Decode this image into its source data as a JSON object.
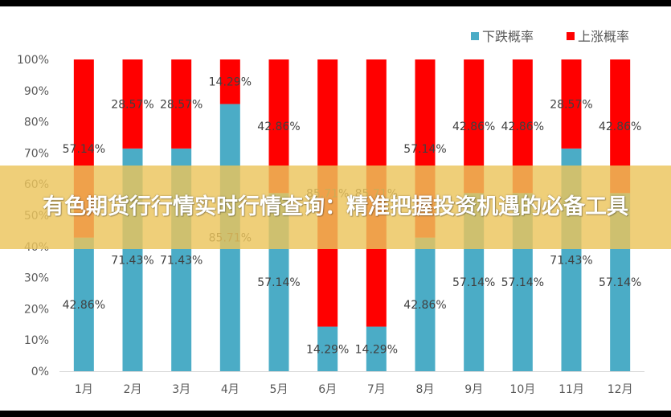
{
  "chart_data": {
    "type": "bar",
    "stacked": true,
    "categories": [
      "1月",
      "2月",
      "3月",
      "4月",
      "5月",
      "6月",
      "7月",
      "8月",
      "9月",
      "10月",
      "11月",
      "12月"
    ],
    "series": [
      {
        "name": "下跌概率",
        "color": "#4bacc6",
        "values": [
          42.86,
          71.43,
          71.43,
          85.71,
          57.14,
          14.29,
          14.29,
          42.86,
          57.14,
          57.14,
          71.43,
          57.14
        ]
      },
      {
        "name": "上涨概率",
        "color": "#ff0000",
        "values": [
          57.14,
          28.57,
          28.57,
          14.29,
          42.86,
          85.71,
          85.71,
          57.14,
          42.86,
          42.86,
          28.57,
          42.86
        ]
      }
    ],
    "value_labels": [
      [
        "42.86%",
        "71.43%",
        "71.43%",
        "85.71%",
        "57.14%",
        "14.29%",
        "14.29%",
        "42.86%",
        "57.14%",
        "57.14%",
        "71.43%",
        "57.14%"
      ],
      [
        "57.14%",
        "28.57%",
        "28.57%",
        "14.29%",
        "42.86%",
        "85.71%",
        "85.71%",
        "57.14%",
        "42.86%",
        "42.86%",
        "28.57%",
        "42.86%"
      ]
    ],
    "ylim": [
      0,
      100
    ],
    "yticks": [
      "0%",
      "10%",
      "20%",
      "30%",
      "40%",
      "50%",
      "60%",
      "70%",
      "80%",
      "90%",
      "100%"
    ],
    "legend_position": "top-right",
    "grid": false
  },
  "banner": {
    "text": "有色期货行行情实时行情查询：精准把握投资机遇的必备工具"
  }
}
